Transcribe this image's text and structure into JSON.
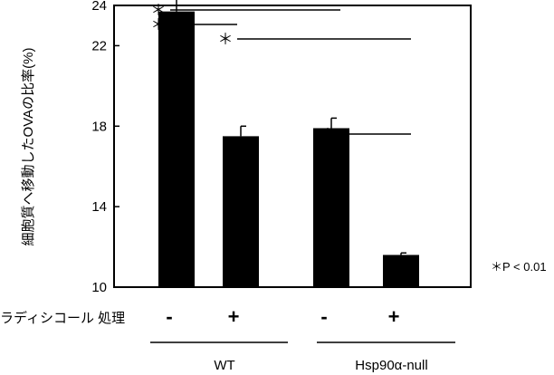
{
  "chart_data": {
    "type": "bar",
    "ylabel": "細胞質へ移動したOVAの比率(%)",
    "ylim": [
      10,
      24
    ],
    "yticks": [
      10,
      14,
      18,
      22,
      24
    ],
    "treatment_label": "ラディシコール 処理",
    "bars": [
      {
        "group": "WT",
        "treatment": "-",
        "value": 23.7,
        "error": 0.8
      },
      {
        "group": "WT",
        "treatment": "+",
        "value": 17.5,
        "error": 0.5
      },
      {
        "group": "Hsp90α-null",
        "treatment": "-",
        "value": 17.9,
        "error": 0.5
      },
      {
        "group": "Hsp90α-null",
        "treatment": "+",
        "value": 11.6,
        "error": 0.1
      }
    ],
    "groups": [
      "WT",
      "Hsp90α-null"
    ],
    "significance": {
      "marker": "＊",
      "note": "＊P < 0.01",
      "comparisons": [
        {
          "from": 0,
          "to": 1
        },
        {
          "from": 0,
          "to": 2
        },
        {
          "from": 1,
          "to": 3
        },
        {
          "from": 2,
          "to": 3
        }
      ]
    },
    "grid": false
  }
}
